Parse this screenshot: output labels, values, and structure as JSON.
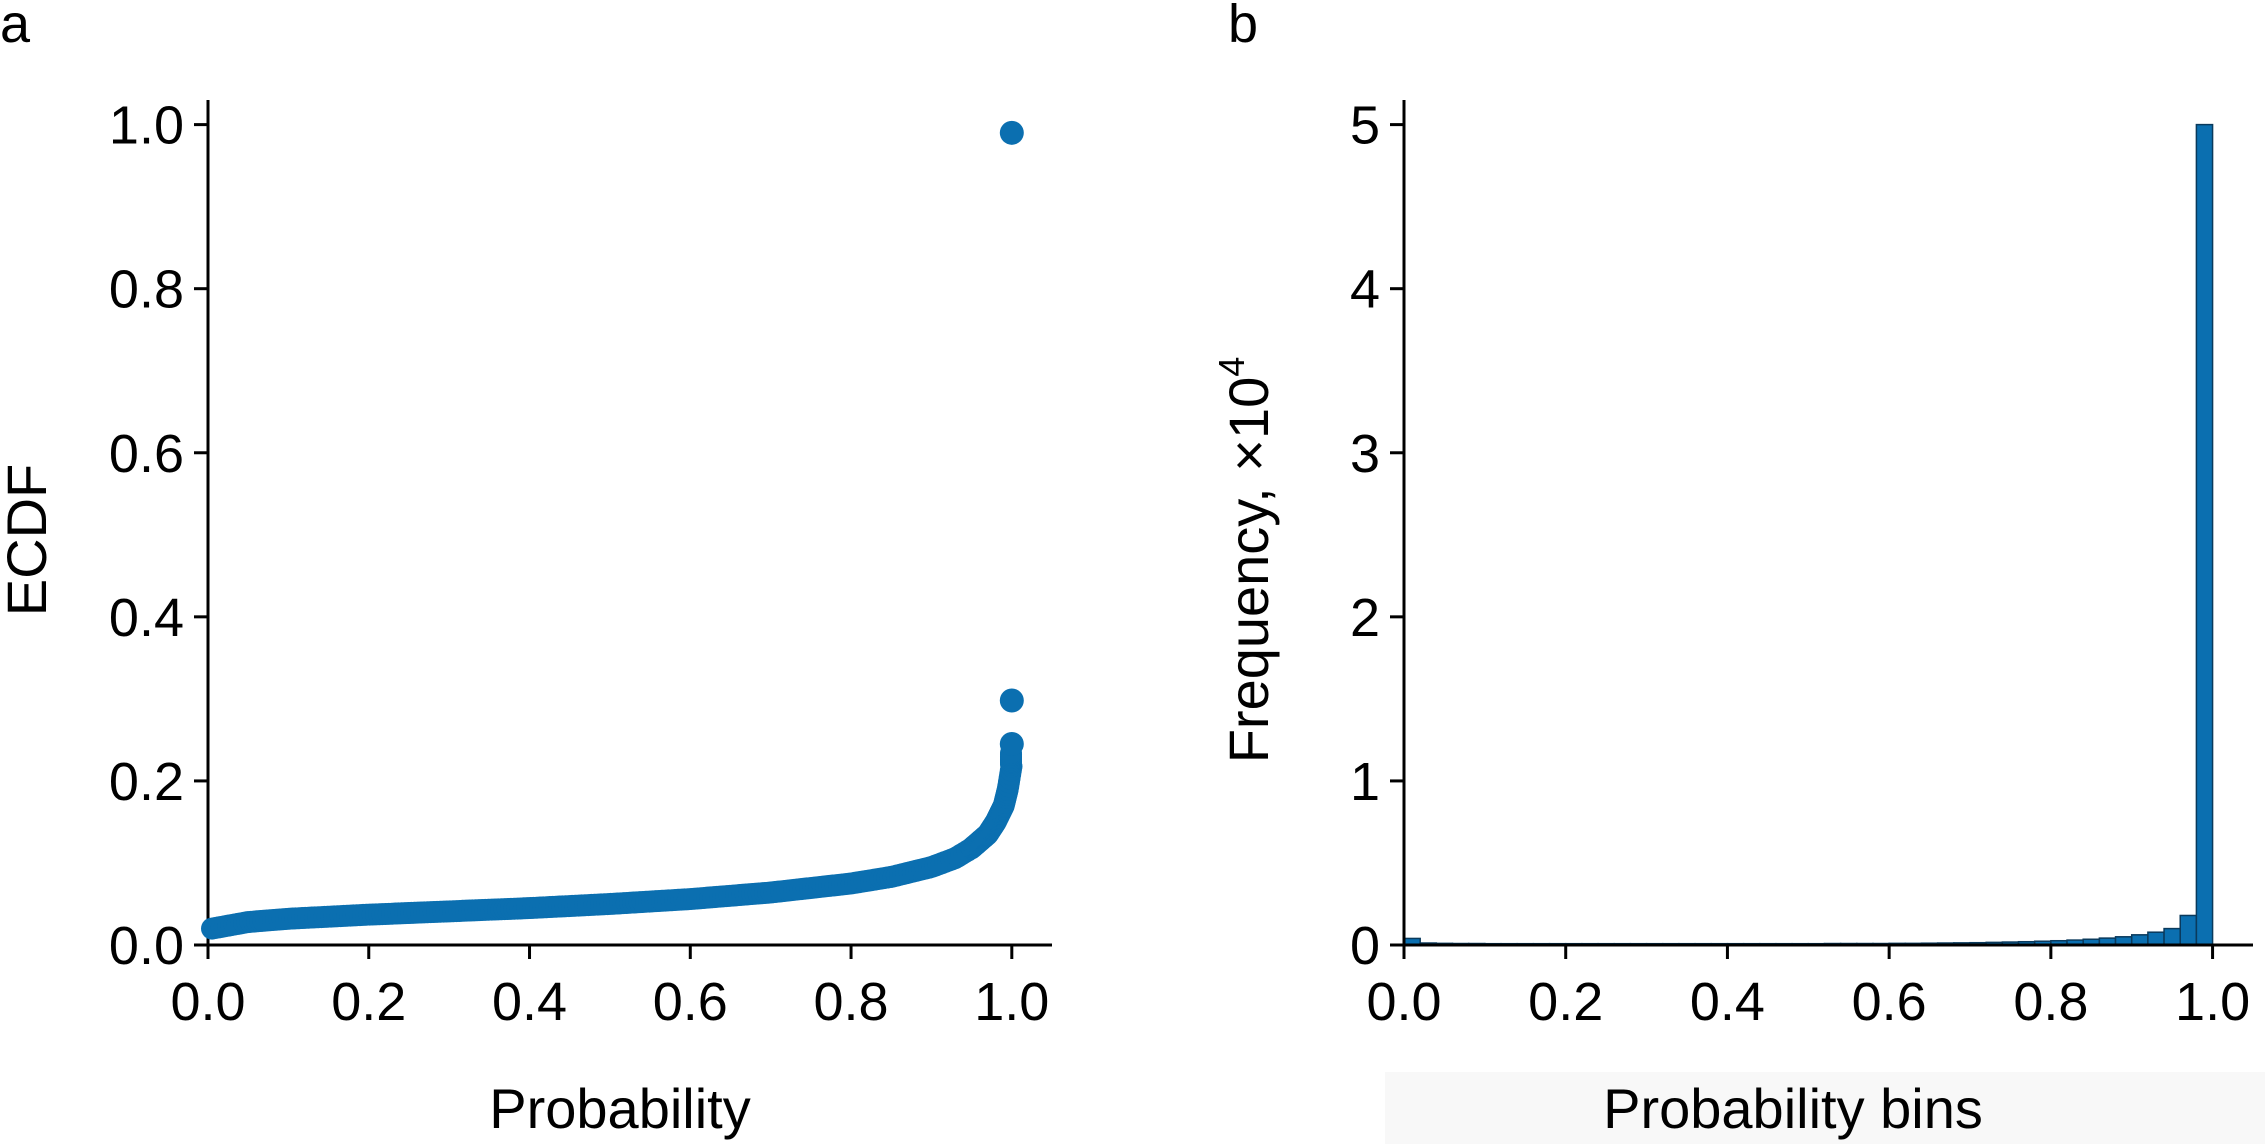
{
  "chart_data": [
    {
      "panel": "a",
      "type": "scatter",
      "title": "",
      "xlabel": "Probability",
      "ylabel": "ECDF",
      "xlim": [
        0.0,
        1.05
      ],
      "ylim": [
        0.0,
        1.03
      ],
      "xticks": [
        "0.0",
        "0.2",
        "0.4",
        "0.6",
        "0.8",
        "1.0"
      ],
      "yticks": [
        "0.0",
        "0.2",
        "0.4",
        "0.6",
        "0.8",
        "1.0"
      ],
      "color": "#0b6fb0",
      "grid": false,
      "curve": {
        "x": [
          0.005,
          0.05,
          0.1,
          0.2,
          0.3,
          0.4,
          0.5,
          0.6,
          0.7,
          0.8,
          0.85,
          0.9,
          0.93,
          0.95,
          0.97,
          0.98,
          0.99,
          0.995,
          1.0
        ],
        "y": [
          0.02,
          0.028,
          0.032,
          0.037,
          0.041,
          0.045,
          0.05,
          0.056,
          0.064,
          0.075,
          0.083,
          0.095,
          0.106,
          0.118,
          0.135,
          0.15,
          0.17,
          0.19,
          0.22
        ]
      },
      "outliers": [
        {
          "x": 1.0,
          "y": 0.245
        },
        {
          "x": 1.0,
          "y": 0.298
        },
        {
          "x": 1.0,
          "y": 0.99
        }
      ]
    },
    {
      "panel": "b",
      "type": "bar",
      "title": "",
      "xlabel": "Probability bins",
      "ylabel": "Frequency, ×10",
      "ylabel_exponent": "4",
      "xlim": [
        0.0,
        1.05
      ],
      "ylim": [
        0.0,
        5.15
      ],
      "xticks": [
        "0.0",
        "0.2",
        "0.4",
        "0.6",
        "0.8",
        "1.0"
      ],
      "yticks": [
        "0",
        "1",
        "2",
        "3",
        "4",
        "5"
      ],
      "color": "#0b6fb0",
      "edgecolor": "#0a3a5c",
      "grid": false,
      "bin_width": 0.02,
      "bin_starts": [
        0.0,
        0.02,
        0.04,
        0.06,
        0.08,
        0.1,
        0.12,
        0.14,
        0.16,
        0.18,
        0.2,
        0.22,
        0.24,
        0.26,
        0.28,
        0.3,
        0.32,
        0.34,
        0.36,
        0.38,
        0.4,
        0.42,
        0.44,
        0.46,
        0.48,
        0.5,
        0.52,
        0.54,
        0.56,
        0.58,
        0.6,
        0.62,
        0.64,
        0.66,
        0.68,
        0.7,
        0.72,
        0.74,
        0.76,
        0.78,
        0.8,
        0.82,
        0.84,
        0.86,
        0.88,
        0.9,
        0.92,
        0.94,
        0.96,
        0.98
      ],
      "values": [
        0.04,
        0.012,
        0.01,
        0.009,
        0.009,
        0.008,
        0.008,
        0.008,
        0.008,
        0.008,
        0.008,
        0.008,
        0.008,
        0.008,
        0.008,
        0.008,
        0.008,
        0.008,
        0.008,
        0.008,
        0.008,
        0.008,
        0.008,
        0.008,
        0.008,
        0.008,
        0.009,
        0.009,
        0.009,
        0.009,
        0.01,
        0.01,
        0.011,
        0.012,
        0.013,
        0.014,
        0.016,
        0.018,
        0.02,
        0.023,
        0.026,
        0.03,
        0.035,
        0.042,
        0.05,
        0.062,
        0.078,
        0.1,
        0.18,
        5.0
      ]
    }
  ],
  "panels": {
    "a": {
      "letter": "a"
    },
    "b": {
      "letter": "b"
    }
  }
}
